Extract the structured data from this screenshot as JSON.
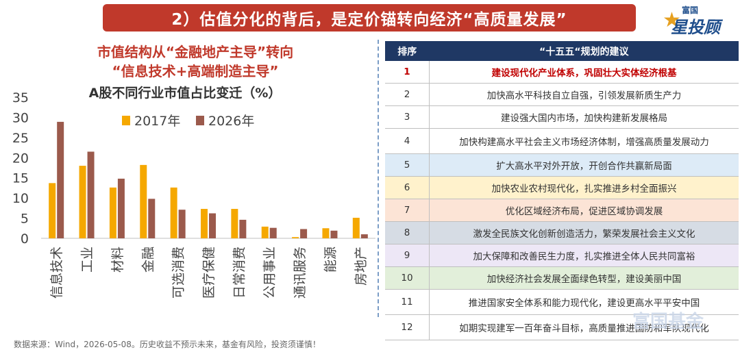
{
  "banner": {
    "title": "2）估值分化的背后，是定价锚转向经济“高质量发展”"
  },
  "logo": {
    "top": "富国",
    "main": "星投顾"
  },
  "left": {
    "subtitle_line1": "市值结构从“金融地产主导”转向",
    "subtitle_line2": "“信息技术+高端制造主导”"
  },
  "chart_data": {
    "type": "bar",
    "title": "A股不同行业市值占比变迁（%）",
    "categories": [
      "信息技术",
      "工业",
      "材料",
      "金融",
      "可选消费",
      "医疗保健",
      "日常消费",
      "公用事业",
      "通讯服务",
      "能源",
      "房地产"
    ],
    "series": [
      {
        "name": "2017年",
        "color": "#f5a800",
        "values": [
          13.7,
          18.0,
          12.6,
          18.2,
          12.6,
          7.3,
          7.3,
          2.9,
          0.3,
          2.5,
          5.1
        ]
      },
      {
        "name": "2026年",
        "color": "#9b5a4c",
        "values": [
          28.9,
          21.5,
          14.8,
          9.8,
          7.1,
          6.2,
          4.6,
          2.6,
          2.3,
          1.9,
          1.0
        ]
      }
    ],
    "yticks": [
      "0",
      "5",
      "10",
      "15",
      "20",
      "25",
      "30",
      "35"
    ],
    "ylim": [
      0,
      35
    ],
    "legend": "top"
  },
  "table": {
    "headers": [
      "排序",
      "“十五五“规划的建议"
    ],
    "rows": [
      {
        "num": "1",
        "text": "建设现代化产业体系，巩固壮大实体经济根基",
        "bg": "#ffffff",
        "highlight": true
      },
      {
        "num": "2",
        "text": "加快高水平科技自立自强，引领发展新质生产力",
        "bg": "#ffffff",
        "highlight": false
      },
      {
        "num": "3",
        "text": "建设强大国内市场，加快构建新发展格局",
        "bg": "#ffffff",
        "highlight": false
      },
      {
        "num": "4",
        "text": "加快构建高水平社会主义市场经济体制，增强高质量发展动力",
        "bg": "#ffffff",
        "highlight": false
      },
      {
        "num": "5",
        "text": "扩大高水平对外开放，开创合作共赢新局面",
        "bg": "#ddebf7",
        "highlight": false
      },
      {
        "num": "6",
        "text": "加快农业农村现代化，扎实推进乡村全面振兴",
        "bg": "#fff2cc",
        "highlight": false
      },
      {
        "num": "7",
        "text": "优化区域经济布局，促进区域协调发展",
        "bg": "#fce4d6",
        "highlight": false
      },
      {
        "num": "8",
        "text": "激发全民族文化创新创造活力，繁荣发展社会主义文化",
        "bg": "#d6dce4",
        "highlight": false
      },
      {
        "num": "9",
        "text": "加大保障和改善民生力度，扎实推进全体人民共同富裕",
        "bg": "#ede7f6",
        "highlight": false
      },
      {
        "num": "10",
        "text": "加快经济社会发展全面绿色转型，建设美丽中国",
        "bg": "#e2efda",
        "highlight": false
      },
      {
        "num": "11",
        "text": "推进国家安全体系和能力现代化，建设更高水平平安中国",
        "bg": "#ffffff",
        "highlight": false
      },
      {
        "num": "12",
        "text": "如期实现建军一百年奋斗目标，高质量推进国防和军队现代化",
        "bg": "#ffffff",
        "highlight": false
      }
    ]
  },
  "footer": {
    "text": "数据来源：Wind，2026-05-08。历史收益不预示未来，基金有风险，投资须谨慎！"
  },
  "watermark": {
    "text": "富国基金"
  }
}
